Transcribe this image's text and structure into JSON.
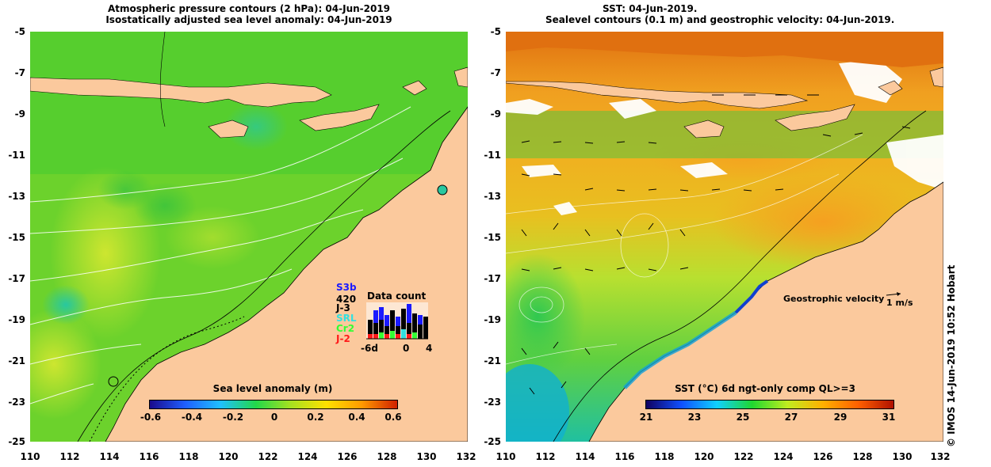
{
  "left_panel": {
    "title_line1": "Atmospheric pressure contours (2 hPa): 04-Jun-2019",
    "title_line2": "Isostatically adjusted sea level anomaly: 04-Jun-2019",
    "colorbar_title": "Sea level anomaly (m)",
    "colorbar_ticks": [
      "-0.6",
      "-0.4",
      "-0.2",
      "0",
      "0.2",
      "0.4",
      "0.6"
    ],
    "data_count": {
      "label": "Data count",
      "value": "420",
      "missions": [
        {
          "name": "S3b",
          "color": "#1a1aff"
        },
        {
          "name": "J-3",
          "color": "#000000"
        },
        {
          "name": "SRL",
          "color": "#33e0e0"
        },
        {
          "name": "Cr2",
          "color": "#33ff33"
        },
        {
          "name": "J-2",
          "color": "#ff1a1a"
        }
      ],
      "axis_ticks": [
        "-6d",
        "0",
        "4"
      ]
    }
  },
  "right_panel": {
    "title_line1": "SST: 04-Jun-2019.",
    "title_line2": "Sealevel contours (0.1 m) and geostrophic velocity: 04-Jun-2019.",
    "colorbar_title": "SST (°C) 6d ngt-only comp QL>=3",
    "colorbar_ticks": [
      "21",
      "23",
      "25",
      "27",
      "29",
      "31"
    ],
    "velocity_legend": "Geostrophic velocity",
    "velocity_scale": "1 m/s"
  },
  "y_axis_ticks": [
    "-5",
    "-7",
    "-9",
    "-11",
    "-13",
    "-15",
    "-17",
    "-19",
    "-21",
    "-23",
    "-25"
  ],
  "x_axis_ticks": [
    "110",
    "112",
    "114",
    "116",
    "118",
    "120",
    "122",
    "124",
    "126",
    "128",
    "130",
    "132"
  ],
  "credit": "© IMOS 14-Jun-2019 10:52 Hobart",
  "colors": {
    "land": "#fbc99d",
    "sla_ramp": [
      "#1a0a8c",
      "#1f5fff",
      "#20c0ff",
      "#22d84a",
      "#a8e020",
      "#ffe000",
      "#ff9a00",
      "#d02000"
    ],
    "sst_ramp": [
      "#100060",
      "#1050ff",
      "#10d0ff",
      "#20d830",
      "#c0ec20",
      "#ffb000",
      "#ff6000",
      "#b01000"
    ]
  }
}
